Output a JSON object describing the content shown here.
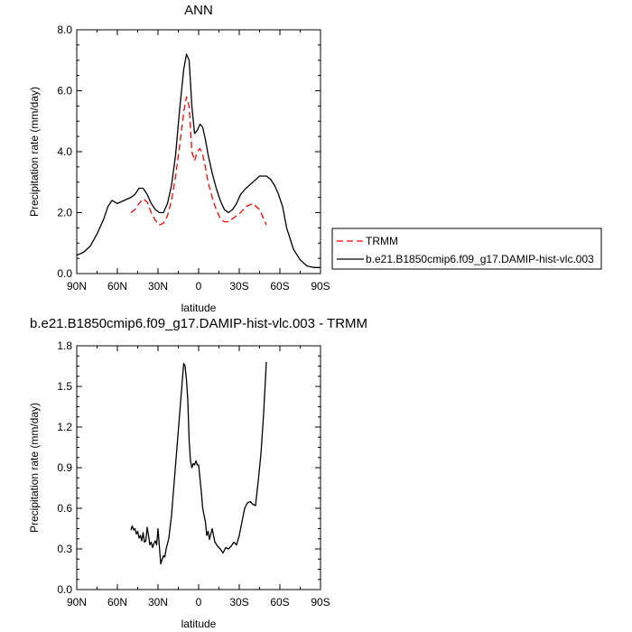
{
  "chart_data": [
    {
      "type": "line",
      "title": "ANN",
      "xlabel": "latitude",
      "ylabel": "Precipitation rate (mm/day)",
      "xlim": [
        90,
        -90
      ],
      "ylim": [
        0,
        8
      ],
      "xticks": [
        90,
        60,
        30,
        0,
        -30,
        -60,
        -90
      ],
      "xtick_labels": [
        "90N",
        "60N",
        "30N",
        "0",
        "30S",
        "60S",
        "90S"
      ],
      "yticks": [
        0,
        2,
        4,
        6,
        8
      ],
      "ytick_labels": [
        "0.0",
        "2.0",
        "4.0",
        "6.0",
        "8.0"
      ],
      "legend": {
        "position": "right",
        "entries": [
          {
            "label": "TRMM",
            "color": "#ff0000",
            "dash": "dashed"
          },
          {
            "label": "b.e21.B1850cmip6.f09_g17.DAMIP-hist-vlc.003",
            "color": "#000000",
            "dash": "solid"
          }
        ]
      },
      "series": [
        {
          "name": "b.e21.B1850cmip6.f09_g17.DAMIP-hist-vlc.003",
          "color": "#000000",
          "dash": "solid",
          "x": [
            90,
            85,
            80,
            75,
            70,
            67,
            64,
            60,
            55,
            50,
            47,
            44,
            41,
            38,
            35,
            32,
            29,
            26,
            23,
            20,
            17,
            14,
            11,
            9,
            7,
            5,
            3,
            1,
            -1,
            -3,
            -5,
            -7,
            -10,
            -13,
            -16,
            -19,
            -22,
            -25,
            -28,
            -31,
            -35,
            -40,
            -45,
            -50,
            -53,
            -56,
            -59,
            -62,
            -65,
            -70,
            -75,
            -80,
            -85,
            -90
          ],
          "y": [
            0.6,
            0.7,
            0.9,
            1.3,
            1.8,
            2.2,
            2.4,
            2.3,
            2.4,
            2.5,
            2.6,
            2.8,
            2.8,
            2.6,
            2.3,
            2.1,
            2.0,
            2.0,
            2.3,
            2.9,
            3.9,
            5.4,
            6.7,
            7.2,
            7.0,
            5.5,
            4.6,
            4.7,
            4.9,
            4.8,
            4.4,
            3.9,
            3.3,
            2.8,
            2.4,
            2.1,
            2.0,
            2.1,
            2.3,
            2.6,
            2.8,
            3.0,
            3.2,
            3.2,
            3.1,
            2.9,
            2.6,
            2.2,
            1.5,
            0.8,
            0.45,
            0.25,
            0.2,
            0.2
          ]
        },
        {
          "name": "TRMM",
          "color": "#ff0000",
          "dash": "dashed",
          "x": [
            50,
            47,
            44,
            41,
            38,
            35,
            32,
            29,
            26,
            23,
            20,
            17,
            14,
            11,
            9,
            7,
            5,
            3,
            1,
            -1,
            -3,
            -5,
            -7,
            -10,
            -13,
            -16,
            -19,
            -22,
            -25,
            -28,
            -31,
            -35,
            -40,
            -45,
            -50
          ],
          "y": [
            2.0,
            2.1,
            2.3,
            2.45,
            2.35,
            2.0,
            1.75,
            1.6,
            1.65,
            1.9,
            2.4,
            3.2,
            4.2,
            5.3,
            5.8,
            5.5,
            4.0,
            3.7,
            4.0,
            4.1,
            3.9,
            3.5,
            3.0,
            2.5,
            2.1,
            1.8,
            1.7,
            1.7,
            1.8,
            1.9,
            2.0,
            2.2,
            2.3,
            2.1,
            1.6
          ]
        }
      ]
    },
    {
      "type": "line",
      "title": "b.e21.B1850cmip6.f09_g17.DAMIP-hist-vlc.003 - TRMM",
      "xlabel": "latitude",
      "ylabel": "Precipitation rate (mm/day)",
      "xlim": [
        90,
        -90
      ],
      "ylim": [
        0,
        1.8
      ],
      "xticks": [
        90,
        60,
        30,
        0,
        -30,
        -60,
        -90
      ],
      "xtick_labels": [
        "90N",
        "60N",
        "30N",
        "0",
        "30S",
        "60S",
        "90S"
      ],
      "yticks": [
        0,
        0.3,
        0.6,
        0.9,
        1.2,
        1.5,
        1.8
      ],
      "ytick_labels": [
        "0.0",
        "0.3",
        "0.6",
        "0.9",
        "1.2",
        "1.5",
        "1.8"
      ],
      "series": [
        {
          "name": "b.e21.B1850cmip6.f09_g17.DAMIP-hist-vlc.003 - TRMM",
          "color": "#000000",
          "dash": "solid",
          "x": [
            50,
            49,
            48,
            47,
            46,
            45,
            44,
            43,
            42,
            41,
            40,
            39,
            38,
            37,
            36,
            35,
            34,
            33,
            32,
            31,
            30,
            29,
            28,
            27,
            26,
            25,
            24,
            22,
            20,
            18,
            16,
            14,
            12,
            11,
            10,
            9,
            8,
            7,
            6,
            5,
            4,
            3,
            2,
            1,
            0,
            -1,
            -2,
            -3,
            -4,
            -5,
            -6,
            -7,
            -8,
            -10,
            -12,
            -14,
            -16,
            -18,
            -20,
            -22,
            -24,
            -26,
            -28,
            -30,
            -32,
            -34,
            -36,
            -38,
            -40,
            -42,
            -44,
            -46,
            -48,
            -50
          ],
          "y": [
            0.44,
            0.47,
            0.44,
            0.45,
            0.41,
            0.43,
            0.38,
            0.4,
            0.36,
            0.42,
            0.35,
            0.36,
            0.46,
            0.4,
            0.33,
            0.35,
            0.31,
            0.34,
            0.36,
            0.33,
            0.45,
            0.32,
            0.19,
            0.22,
            0.25,
            0.24,
            0.3,
            0.38,
            0.55,
            0.8,
            1.05,
            1.3,
            1.55,
            1.67,
            1.65,
            1.55,
            1.4,
            1.1,
            0.95,
            0.9,
            0.93,
            0.92,
            0.95,
            0.92,
            0.92,
            0.82,
            0.72,
            0.6,
            0.55,
            0.5,
            0.4,
            0.43,
            0.37,
            0.45,
            0.35,
            0.32,
            0.3,
            0.27,
            0.31,
            0.3,
            0.32,
            0.35,
            0.33,
            0.4,
            0.5,
            0.6,
            0.64,
            0.65,
            0.63,
            0.62,
            0.8,
            1.0,
            1.3,
            1.68
          ]
        }
      ]
    }
  ]
}
